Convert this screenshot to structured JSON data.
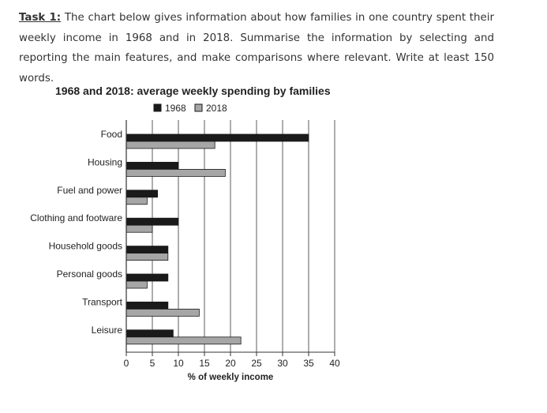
{
  "task": {
    "label": "Task 1:",
    "text": " The chart below gives information about how families in one country spent their weekly income in 1968 and in 2018. Summarise the information by selecting and reporting the main features, and make comparisons where relevant. Write at least 150 words."
  },
  "colors": {
    "series_1968": "#1a1a1a",
    "series_2018": "#a6a6a6"
  },
  "chart_data": {
    "type": "bar",
    "orientation": "horizontal",
    "title": "1968 and 2018: average weekly spending by families",
    "xlabel": "% of weekly income",
    "ylabel": "",
    "xlim": [
      0,
      40
    ],
    "xticks": [
      0,
      5,
      10,
      15,
      20,
      25,
      30,
      35,
      40
    ],
    "grid": true,
    "legend_position": "top",
    "categories": [
      "Food",
      "Housing",
      "Fuel and power",
      "Clothing and footware",
      "Household goods",
      "Personal goods",
      "Transport",
      "Leisure"
    ],
    "series": [
      {
        "name": "1968",
        "values": [
          35,
          10,
          6,
          10,
          8,
          8,
          8,
          9
        ]
      },
      {
        "name": "2018",
        "values": [
          17,
          19,
          4,
          5,
          8,
          4,
          14,
          22
        ]
      }
    ]
  }
}
